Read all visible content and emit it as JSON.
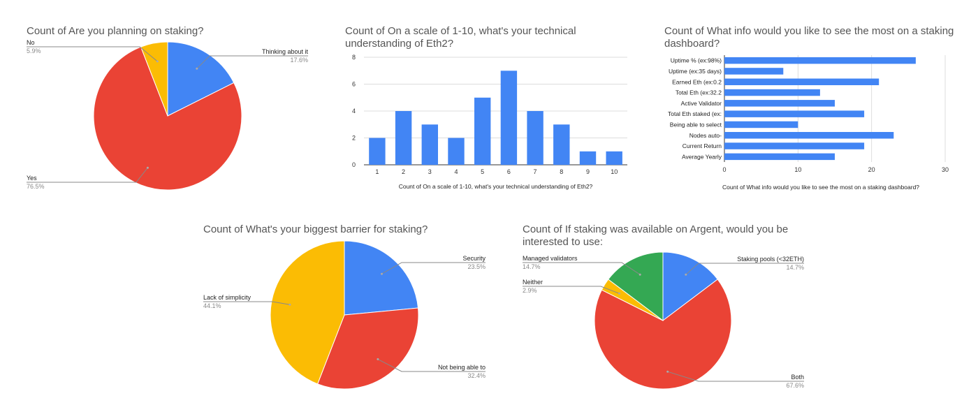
{
  "chart_data": [
    {
      "type": "pie",
      "title": "Count of Are you planning on staking?",
      "slices": [
        {
          "label": "Thinking about it",
          "pct_label": "17.6%",
          "value": 17.6,
          "color": "#4285f4"
        },
        {
          "label": "Yes",
          "pct_label": "76.5%",
          "value": 76.5,
          "color": "#ea4335"
        },
        {
          "label": "No",
          "pct_label": "5.9%",
          "value": 5.9,
          "color": "#fbbc04"
        }
      ]
    },
    {
      "type": "bar",
      "title": "Count of On a scale of 1-10, what's your technical understanding of Eth2?",
      "xlabel": "Count of On a scale of 1-10, what's your technical understanding of Eth2?",
      "categories": [
        "1",
        "2",
        "3",
        "4",
        "5",
        "6",
        "7",
        "8",
        "9",
        "10"
      ],
      "values": [
        2,
        4,
        3,
        2,
        5,
        7,
        4,
        3,
        1,
        1
      ],
      "ylim": [
        0,
        8
      ],
      "yticks": [
        "0",
        "2",
        "4",
        "6",
        "8"
      ],
      "color": "#4285f4"
    },
    {
      "type": "bar",
      "orientation": "horizontal",
      "title": "Count of What info would you like to see the most on a staking dashboard?",
      "xlabel": "Count of What info would you like to see the most on a staking dashboard?",
      "categories": [
        "Uptime % (ex:98%)",
        "Uptime (ex:35 days)",
        "Earned Eth (ex:0.2",
        "Total Eth (ex:32.2",
        "Active Validator",
        "Total Eth staked (ex:",
        "Being able to select",
        "Nodes auto-",
        "Current Return",
        "Average Yearly"
      ],
      "values": [
        26,
        8,
        21,
        13,
        15,
        19,
        10,
        23,
        19,
        15
      ],
      "xlim": [
        0,
        30
      ],
      "xticks": [
        "0",
        "10",
        "20",
        "30"
      ],
      "color": "#4285f4"
    },
    {
      "type": "pie",
      "title": "Count of What's your biggest barrier for staking?",
      "slices": [
        {
          "label": "Security",
          "pct_label": "23.5%",
          "value": 23.5,
          "color": "#4285f4"
        },
        {
          "label": "Not being able to",
          "pct_label": "32.4%",
          "value": 32.4,
          "color": "#ea4335"
        },
        {
          "label": "Lack of simplicity",
          "pct_label": "44.1%",
          "value": 44.1,
          "color": "#fbbc04"
        }
      ]
    },
    {
      "type": "pie",
      "title": "Count of If staking was available on Argent, would you be interested to use:",
      "slices": [
        {
          "label": "Staking pools (<32ETH)",
          "pct_label": "14.7%",
          "value": 14.7,
          "color": "#4285f4"
        },
        {
          "label": "Both",
          "pct_label": "67.6%",
          "value": 67.6,
          "color": "#ea4335"
        },
        {
          "label": "Neither",
          "pct_label": "2.9%",
          "value": 2.9,
          "color": "#fbbc04"
        },
        {
          "label": "Managed validators",
          "pct_label": "14.7%",
          "value": 14.7,
          "color": "#34a853"
        }
      ]
    }
  ]
}
